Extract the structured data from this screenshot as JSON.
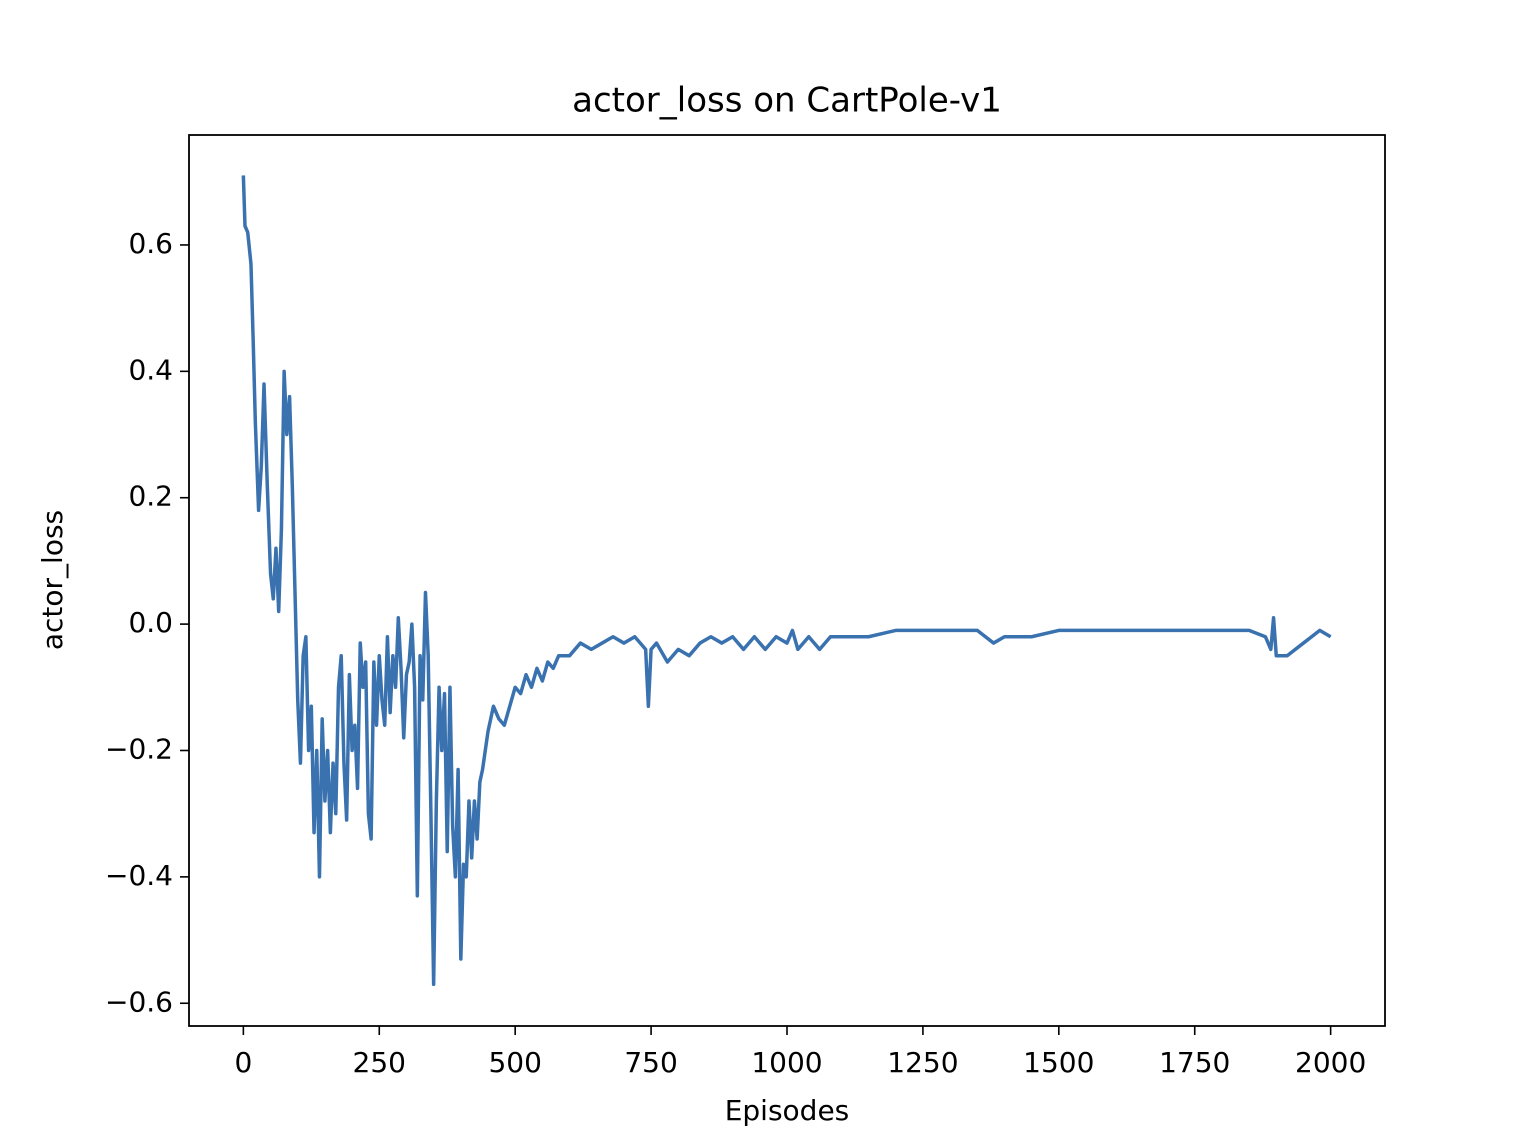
{
  "chart_data": {
    "type": "line",
    "title": "actor_loss on CartPole-v1",
    "xlabel": "Episodes",
    "ylabel": "actor_loss",
    "color": "#3a72b0",
    "xlim": [
      -100,
      2100
    ],
    "ylim": [
      -0.636,
      0.774
    ],
    "xticks": [
      0,
      250,
      500,
      750,
      1000,
      1250,
      1500,
      1750,
      2000
    ],
    "yticks": [
      {
        "value": -0.6,
        "label": "−0.6"
      },
      {
        "value": -0.4,
        "label": "−0.4"
      },
      {
        "value": -0.2,
        "label": "−0.2"
      },
      {
        "value": 0,
        "label": "0.0"
      },
      0.2,
      0.4,
      0.6
    ],
    "x": [
      0,
      3,
      8,
      14,
      18,
      22,
      28,
      33,
      38,
      44,
      50,
      55,
      60,
      65,
      70,
      75,
      80,
      85,
      90,
      95,
      100,
      105,
      110,
      115,
      120,
      125,
      130,
      135,
      140,
      145,
      150,
      155,
      160,
      165,
      170,
      175,
      180,
      185,
      190,
      195,
      200,
      205,
      210,
      215,
      220,
      225,
      230,
      235,
      240,
      245,
      250,
      255,
      260,
      265,
      270,
      275,
      280,
      285,
      290,
      295,
      300,
      305,
      310,
      315,
      320,
      325,
      330,
      335,
      340,
      345,
      350,
      355,
      360,
      365,
      370,
      375,
      380,
      385,
      390,
      395,
      400,
      405,
      410,
      415,
      420,
      425,
      430,
      435,
      440,
      450,
      460,
      470,
      480,
      490,
      500,
      510,
      520,
      530,
      540,
      550,
      560,
      570,
      580,
      600,
      620,
      640,
      660,
      680,
      700,
      720,
      740,
      745,
      750,
      760,
      780,
      800,
      820,
      840,
      860,
      880,
      900,
      920,
      940,
      960,
      980,
      1000,
      1010,
      1020,
      1040,
      1060,
      1080,
      1100,
      1150,
      1200,
      1250,
      1300,
      1350,
      1380,
      1400,
      1450,
      1500,
      1550,
      1600,
      1650,
      1700,
      1750,
      1800,
      1850,
      1880,
      1890,
      1895,
      1900,
      1920,
      1950,
      1980,
      2000
    ],
    "values": [
      0.71,
      0.63,
      0.62,
      0.57,
      0.45,
      0.32,
      0.18,
      0.25,
      0.38,
      0.22,
      0.08,
      0.04,
      0.12,
      0.02,
      0.15,
      0.4,
      0.3,
      0.36,
      0.22,
      0.05,
      -0.12,
      -0.22,
      -0.05,
      -0.02,
      -0.2,
      -0.13,
      -0.33,
      -0.2,
      -0.4,
      -0.15,
      -0.28,
      -0.2,
      -0.33,
      -0.22,
      -0.3,
      -0.1,
      -0.05,
      -0.22,
      -0.31,
      -0.08,
      -0.2,
      -0.16,
      -0.26,
      -0.03,
      -0.1,
      -0.06,
      -0.3,
      -0.34,
      -0.06,
      -0.16,
      -0.05,
      -0.12,
      -0.16,
      -0.02,
      -0.14,
      -0.05,
      -0.1,
      0.01,
      -0.07,
      -0.18,
      -0.08,
      -0.06,
      0.0,
      -0.1,
      -0.43,
      -0.05,
      -0.12,
      0.05,
      -0.05,
      -0.3,
      -0.57,
      -0.28,
      -0.1,
      -0.2,
      -0.11,
      -0.36,
      -0.1,
      -0.32,
      -0.4,
      -0.23,
      -0.53,
      -0.38,
      -0.4,
      -0.28,
      -0.37,
      -0.28,
      -0.34,
      -0.25,
      -0.23,
      -0.17,
      -0.13,
      -0.15,
      -0.16,
      -0.13,
      -0.1,
      -0.11,
      -0.08,
      -0.1,
      -0.07,
      -0.09,
      -0.06,
      -0.07,
      -0.05,
      -0.05,
      -0.03,
      -0.04,
      -0.03,
      -0.02,
      -0.03,
      -0.02,
      -0.04,
      -0.13,
      -0.04,
      -0.03,
      -0.06,
      -0.04,
      -0.05,
      -0.03,
      -0.02,
      -0.03,
      -0.02,
      -0.04,
      -0.02,
      -0.04,
      -0.02,
      -0.03,
      -0.01,
      -0.04,
      -0.02,
      -0.04,
      -0.02,
      -0.02,
      -0.02,
      -0.01,
      -0.01,
      -0.01,
      -0.01,
      -0.03,
      -0.02,
      -0.02,
      -0.01,
      -0.01,
      -0.01,
      -0.01,
      -0.01,
      -0.01,
      -0.01,
      -0.01,
      -0.02,
      -0.04,
      0.01,
      -0.05,
      -0.05,
      -0.03,
      -0.01,
      -0.02
    ]
  }
}
